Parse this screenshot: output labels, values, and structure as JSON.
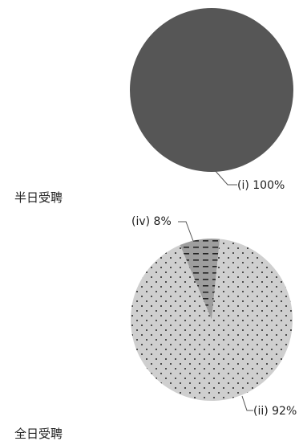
{
  "chart_data": [
    {
      "type": "pie",
      "title": "半日受聘",
      "slices": [
        {
          "label": "(i) 100%",
          "value": 100,
          "color": "#565656",
          "pattern": "solid"
        }
      ]
    },
    {
      "type": "pie",
      "title": "全日受聘",
      "slices": [
        {
          "label": "(iv) 8%",
          "value": 8,
          "color": "#9e9e9e",
          "pattern": "dashes"
        },
        {
          "label": "(ii) 92%",
          "value": 92,
          "color": "#cfcfcf",
          "pattern": "dots"
        }
      ]
    }
  ]
}
